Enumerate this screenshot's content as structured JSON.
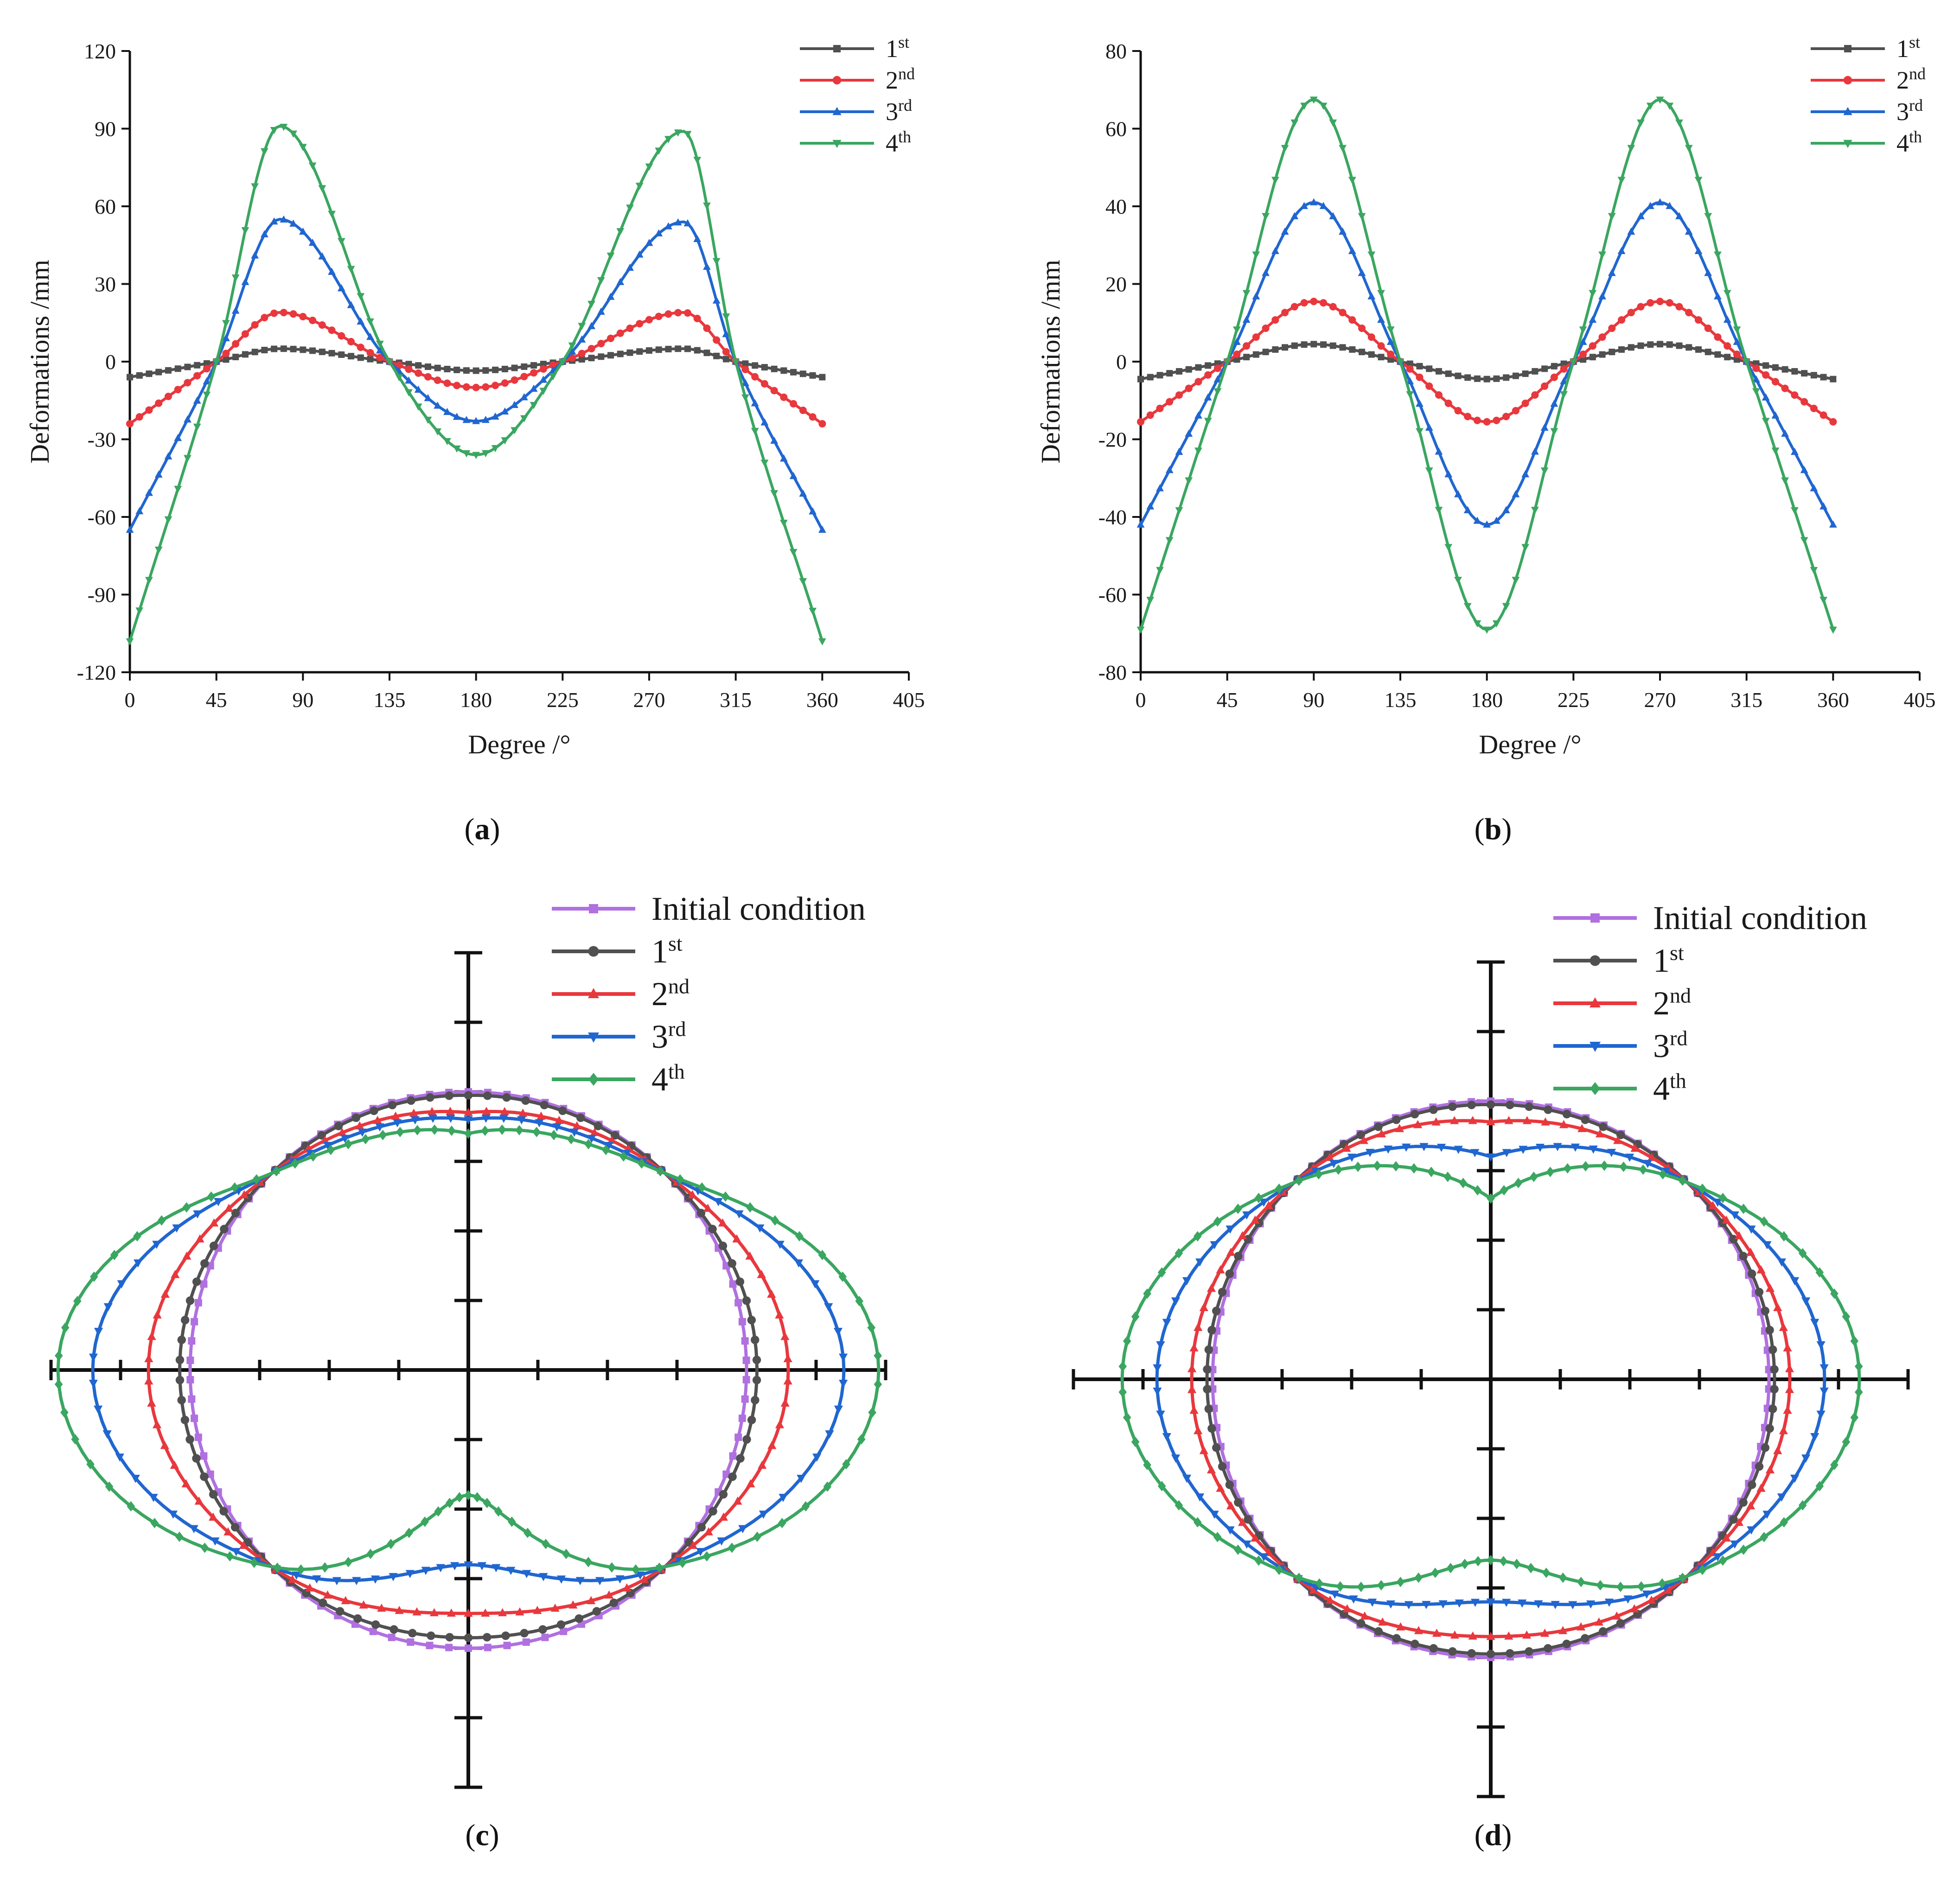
{
  "chart_data": [
    {
      "id": "a",
      "type": "line",
      "caption_letter": "a",
      "xlabel": "Degree /°",
      "ylabel": "Deformations /mm",
      "xlim": [
        0,
        405
      ],
      "ylim": [
        -120,
        120
      ],
      "xticks": [
        "0",
        "45",
        "90",
        "135",
        "180",
        "225",
        "270",
        "315",
        "360",
        "405"
      ],
      "yticks": [
        "-120",
        "-90",
        "-60",
        "-30",
        "0",
        "30",
        "60",
        "90",
        "120"
      ],
      "series": [
        {
          "name": "1",
          "sup": "st",
          "color": "#505050",
          "marker": "square",
          "x": [
            0,
            45,
            78,
            135,
            180,
            225,
            288,
            315,
            360
          ],
          "y": [
            -6,
            0,
            5,
            0,
            -3.5,
            0,
            5,
            0,
            -6
          ]
        },
        {
          "name": "2",
          "sup": "nd",
          "color": "#e8383d",
          "marker": "circle",
          "x": [
            0,
            45,
            78,
            135,
            180,
            225,
            288,
            315,
            360
          ],
          "y": [
            -24,
            0,
            19,
            0,
            -10,
            0,
            19,
            0,
            -24
          ]
        },
        {
          "name": "3",
          "sup": "rd",
          "color": "#2066d0",
          "marker": "tri-up",
          "x": [
            0,
            45,
            78,
            135,
            180,
            225,
            288,
            315,
            360
          ],
          "y": [
            -65,
            0,
            55,
            0,
            -23,
            0,
            54,
            0,
            -65
          ]
        },
        {
          "name": "4",
          "sup": "th",
          "color": "#3aa660",
          "marker": "tri-down",
          "x": [
            0,
            45,
            78,
            135,
            180,
            225,
            288,
            315,
            360
          ],
          "y": [
            -108,
            0,
            91,
            0,
            -36,
            0,
            89,
            0,
            -108
          ]
        }
      ]
    },
    {
      "id": "b",
      "type": "line",
      "caption_letter": "b",
      "xlabel": "Degree /°",
      "ylabel": "Deformations /mm",
      "xlim": [
        0,
        405
      ],
      "ylim": [
        -80,
        80
      ],
      "xticks": [
        "0",
        "45",
        "90",
        "135",
        "180",
        "225",
        "270",
        "315",
        "360",
        "405"
      ],
      "yticks": [
        "-80",
        "-60",
        "-40",
        "-20",
        "0",
        "20",
        "40",
        "60",
        "80"
      ],
      "series": [
        {
          "name": "1",
          "sup": "st",
          "color": "#505050",
          "marker": "square",
          "x": [
            0,
            45,
            90,
            135,
            180,
            225,
            270,
            315,
            360
          ],
          "y": [
            -4.5,
            0,
            4.5,
            0,
            -4.5,
            0,
            4.5,
            0,
            -4.5
          ]
        },
        {
          "name": "2",
          "sup": "nd",
          "color": "#e8383d",
          "marker": "circle",
          "x": [
            0,
            45,
            90,
            135,
            180,
            225,
            270,
            315,
            360
          ],
          "y": [
            -15.5,
            0,
            15.5,
            0,
            -15.5,
            0,
            15.5,
            0,
            -15.5
          ]
        },
        {
          "name": "3",
          "sup": "rd",
          "color": "#2066d0",
          "marker": "tri-up",
          "x": [
            0,
            45,
            90,
            135,
            180,
            225,
            270,
            315,
            360
          ],
          "y": [
            -42,
            0,
            41,
            0,
            -42,
            0,
            41,
            0,
            -42
          ]
        },
        {
          "name": "4",
          "sup": "th",
          "color": "#3aa660",
          "marker": "tri-down",
          "x": [
            0,
            45,
            90,
            135,
            180,
            225,
            270,
            315,
            360
          ],
          "y": [
            -69,
            0,
            67.5,
            0,
            -69,
            0,
            67.5,
            0,
            -69
          ]
        }
      ]
    },
    {
      "id": "c",
      "type": "polar-outline",
      "caption_letter": "c",
      "series": [
        {
          "name": "Initial condition",
          "sup": "",
          "color": "#b070e0",
          "marker": "square",
          "theta": [
            0,
            45,
            90,
            135,
            180,
            225,
            270,
            315,
            360
          ],
          "r": [
            4,
            4,
            4,
            4,
            4,
            4,
            4,
            4,
            4
          ]
        },
        {
          "name": "1",
          "sup": "st",
          "color": "#505050",
          "marker": "circle",
          "theta": [
            0,
            45,
            90,
            135,
            180,
            225,
            270,
            315,
            360
          ],
          "r": [
            3.95,
            4,
            4.15,
            4,
            3.85,
            4,
            4.15,
            4,
            3.95
          ]
        },
        {
          "name": "2",
          "sup": "nd",
          "color": "#e8383d",
          "marker": "tri-up",
          "theta": [
            0,
            45,
            90,
            135,
            180,
            225,
            270,
            315,
            360
          ],
          "r": [
            3.7,
            4,
            4.6,
            4,
            3.5,
            4,
            4.6,
            4,
            3.7
          ]
        },
        {
          "name": "3",
          "sup": "rd",
          "color": "#2066d0",
          "marker": "tri-down",
          "theta": [
            0,
            45,
            90,
            135,
            180,
            225,
            270,
            315,
            360
          ],
          "r": [
            3.6,
            4,
            5.4,
            4,
            2.8,
            4,
            5.4,
            4,
            3.6
          ]
        },
        {
          "name": "4",
          "sup": "th",
          "color": "#3aa660",
          "marker": "diamond",
          "theta": [
            0,
            45,
            90,
            135,
            180,
            225,
            270,
            315,
            360
          ],
          "r": [
            3.4,
            4,
            5.9,
            4,
            1.8,
            4,
            5.9,
            4,
            3.4
          ]
        }
      ]
    },
    {
      "id": "d",
      "type": "polar-outline",
      "caption_letter": "d",
      "series": [
        {
          "name": "Initial condition",
          "sup": "",
          "color": "#b070e0",
          "marker": "square",
          "theta": [
            0,
            45,
            90,
            135,
            180,
            225,
            270,
            315,
            360
          ],
          "r": [
            4,
            4,
            4,
            4,
            4,
            4,
            4,
            4,
            4
          ]
        },
        {
          "name": "1",
          "sup": "st",
          "color": "#505050",
          "marker": "circle",
          "theta": [
            0,
            45,
            90,
            135,
            180,
            225,
            270,
            315,
            360
          ],
          "r": [
            3.95,
            4,
            4.08,
            4,
            3.95,
            4,
            4.08,
            4,
            3.95
          ]
        },
        {
          "name": "2",
          "sup": "nd",
          "color": "#e8383d",
          "marker": "tri-up",
          "theta": [
            0,
            45,
            90,
            135,
            180,
            225,
            270,
            315,
            360
          ],
          "r": [
            3.7,
            4,
            4.3,
            4,
            3.7,
            4,
            4.3,
            4,
            3.7
          ]
        },
        {
          "name": "3",
          "sup": "rd",
          "color": "#2066d0",
          "marker": "tri-down",
          "theta": [
            0,
            45,
            90,
            135,
            180,
            225,
            270,
            315,
            360
          ],
          "r": [
            3.2,
            4,
            4.8,
            4,
            3.2,
            4,
            4.8,
            4,
            3.2
          ]
        },
        {
          "name": "4",
          "sup": "th",
          "color": "#3aa660",
          "marker": "diamond",
          "theta": [
            0,
            45,
            90,
            135,
            180,
            225,
            270,
            315,
            360
          ],
          "r": [
            2.6,
            4,
            5.3,
            4,
            2.6,
            4,
            5.3,
            4,
            2.6
          ]
        }
      ]
    }
  ]
}
